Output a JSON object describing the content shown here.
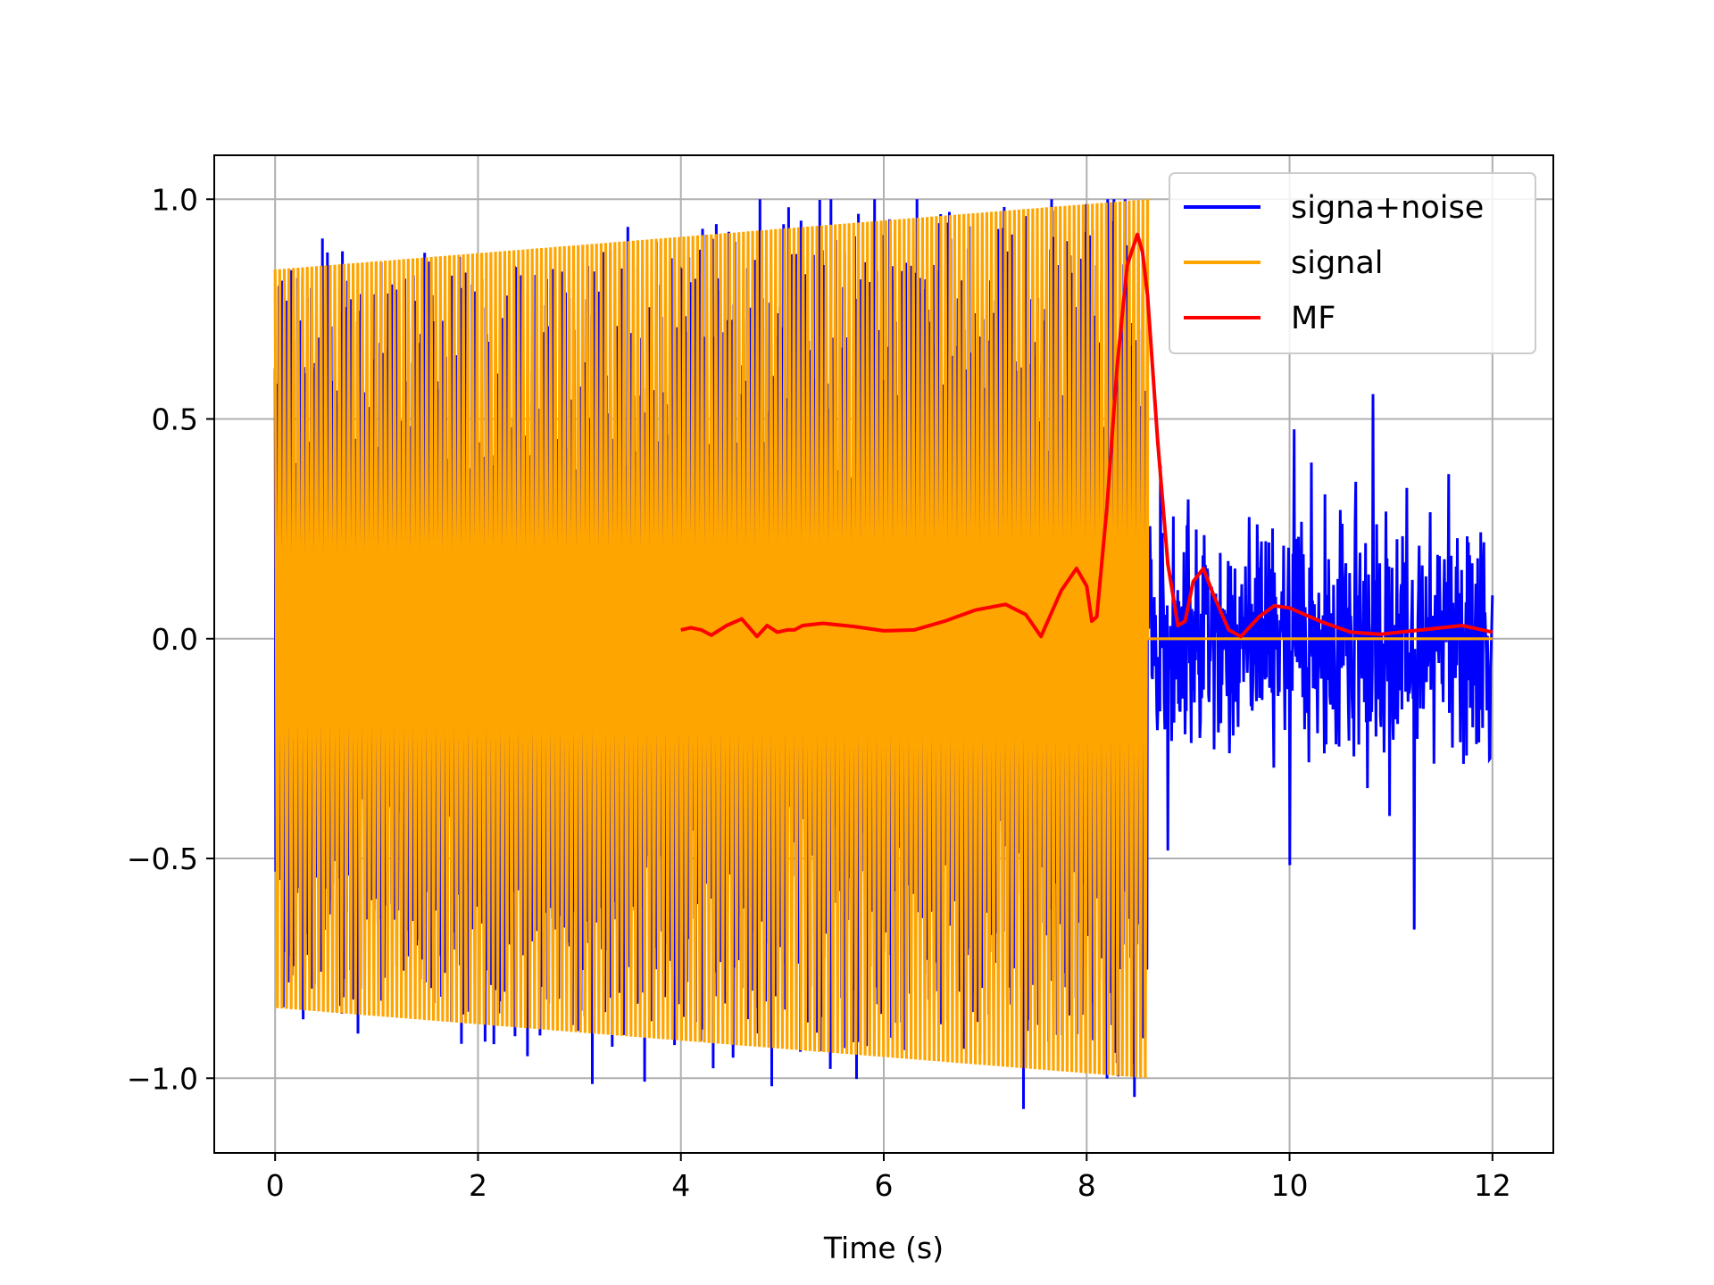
{
  "chart_data": {
    "type": "line",
    "title": "",
    "xlabel": "Time (s)",
    "ylabel": "",
    "xlim": [
      -0.6,
      12.6
    ],
    "ylim": [
      -1.17,
      1.1
    ],
    "grid": true,
    "legend_position": "upper right",
    "x_ticks": [
      0,
      2,
      4,
      6,
      8,
      10,
      12
    ],
    "x_tick_labels": [
      "0",
      "2",
      "4",
      "6",
      "8",
      "10",
      "12"
    ],
    "y_ticks": [
      1.0,
      0.5,
      0.0,
      -0.5,
      -1.0
    ],
    "y_tick_labels": [
      "1.0",
      "0.5",
      "0.0",
      "−0.5",
      "−1.0"
    ],
    "series": [
      {
        "name": "signa+noise",
        "color": "#0000ff",
        "style": "chirp signal plus random noise",
        "signal_interval": [
          0,
          8.6
        ],
        "noise_interval": [
          8.6,
          12
        ],
        "noise_amplitude": 0.6,
        "min": -1.07,
        "max": 1.0
      },
      {
        "name": "signal",
        "color": "#ffa500",
        "style": "chirp with linearly increasing amplitude",
        "x_start": 0,
        "x_end": 8.6,
        "amplitude_start": 0.84,
        "amplitude_end": 1.0,
        "value_after_end": 0.0
      },
      {
        "name": "MF",
        "color": "#ff0000",
        "style": "matched filter output",
        "x": [
          4.0,
          4.1,
          4.2,
          4.3,
          4.45,
          4.6,
          4.75,
          4.85,
          4.95,
          5.05,
          5.12,
          5.2,
          5.4,
          5.7,
          6.0,
          6.3,
          6.6,
          6.9,
          7.2,
          7.4,
          7.55,
          7.75,
          7.9,
          8.0,
          8.05,
          8.1,
          8.2,
          8.3,
          8.4,
          8.5,
          8.55,
          8.6,
          8.7,
          8.8,
          8.9,
          8.97,
          9.05,
          9.15,
          9.25,
          9.4,
          9.52,
          9.7,
          9.85,
          10.0,
          10.3,
          10.6,
          10.9,
          11.3,
          11.7,
          12.0
        ],
        "y": [
          0.02,
          0.025,
          0.02,
          0.008,
          0.03,
          0.045,
          0.005,
          0.03,
          0.015,
          0.02,
          0.02,
          0.03,
          0.035,
          0.028,
          0.018,
          0.02,
          0.04,
          0.065,
          0.078,
          0.055,
          0.005,
          0.11,
          0.16,
          0.12,
          0.04,
          0.05,
          0.3,
          0.62,
          0.85,
          0.92,
          0.88,
          0.78,
          0.45,
          0.17,
          0.03,
          0.04,
          0.13,
          0.16,
          0.1,
          0.02,
          0.005,
          0.05,
          0.075,
          0.07,
          0.04,
          0.015,
          0.01,
          0.02,
          0.03,
          0.015
        ]
      }
    ]
  }
}
